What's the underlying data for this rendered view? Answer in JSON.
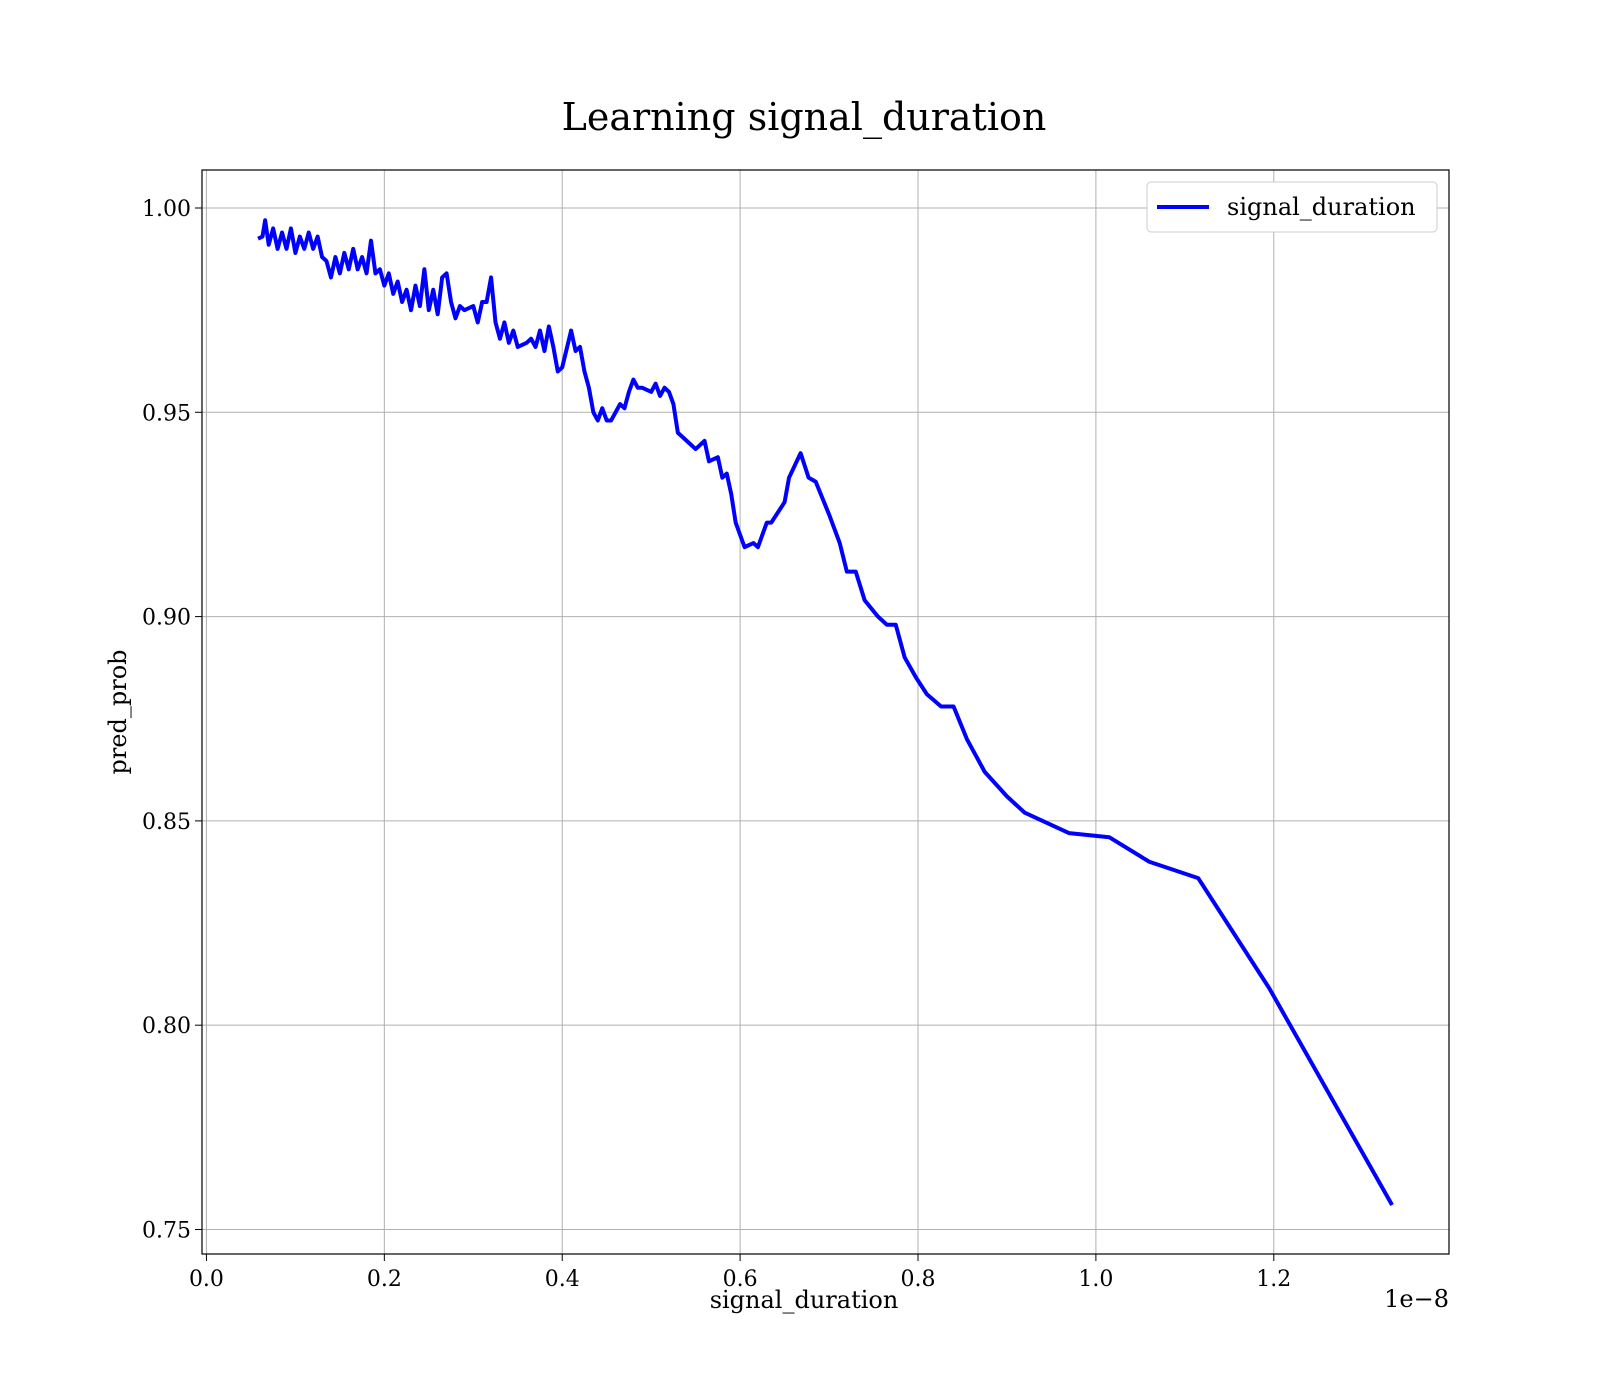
{
  "chart_data": {
    "type": "line",
    "title": "Learning signal_duration",
    "x_label": "signal_duration",
    "y_label": "pred_prob",
    "x_offset_label": "1e−8",
    "xlim": [
      -0.005,
      1.397
    ],
    "ylim": [
      0.744,
      1.0093
    ],
    "xticks": [
      {
        "value": 0,
        "label": "0.0"
      },
      0.2,
      0.4,
      0.6,
      0.8,
      {
        "value": 1,
        "label": "1.0"
      },
      1.2
    ],
    "yticks": [
      0.75,
      {
        "value": 0.8,
        "label": "0.80"
      },
      0.85,
      {
        "value": 0.9,
        "label": "0.90"
      },
      0.95,
      {
        "value": 1,
        "label": "1.00"
      }
    ],
    "grid": true,
    "legend": "upper right",
    "x": [
      0.058,
      0.063,
      0.066,
      0.07,
      0.075,
      0.08,
      0.085,
      0.09,
      0.095,
      0.1,
      0.105,
      0.11,
      0.115,
      0.12,
      0.125,
      0.13,
      0.135,
      0.14,
      0.145,
      0.15,
      0.155,
      0.16,
      0.165,
      0.17,
      0.175,
      0.18,
      0.185,
      0.19,
      0.195,
      0.2,
      0.205,
      0.21,
      0.215,
      0.22,
      0.225,
      0.23,
      0.235,
      0.24,
      0.245,
      0.25,
      0.255,
      0.26,
      0.265,
      0.27,
      0.275,
      0.28,
      0.285,
      0.29,
      0.3,
      0.305,
      0.31,
      0.315,
      0.32,
      0.325,
      0.33,
      0.335,
      0.34,
      0.345,
      0.35,
      0.36,
      0.365,
      0.37,
      0.375,
      0.38,
      0.385,
      0.39,
      0.395,
      0.4,
      0.41,
      0.415,
      0.42,
      0.425,
      0.43,
      0.435,
      0.44,
      0.445,
      0.45,
      0.455,
      0.46,
      0.465,
      0.47,
      0.475,
      0.48,
      0.485,
      0.49,
      0.5,
      0.505,
      0.51,
      0.515,
      0.52,
      0.525,
      0.53,
      0.54,
      0.55,
      0.56,
      0.565,
      0.575,
      0.58,
      0.585,
      0.59,
      0.595,
      0.605,
      0.615,
      0.62,
      0.63,
      0.635,
      0.65,
      0.655,
      0.668,
      0.677,
      0.685,
      0.7,
      0.712,
      0.72,
      0.73,
      0.74,
      0.755,
      0.765,
      0.775,
      0.785,
      0.798,
      0.81,
      0.826,
      0.84,
      0.855,
      0.875,
      0.9,
      0.92,
      0.97,
      1.015,
      1.06,
      1.115,
      1.195,
      1.333
    ],
    "series": [
      {
        "name": "signal_duration",
        "color": "#0000ff",
        "values": [
          0.9925,
          0.993,
          0.997,
          0.991,
          0.995,
          0.99,
          0.994,
          0.99,
          0.995,
          0.989,
          0.993,
          0.99,
          0.994,
          0.99,
          0.993,
          0.988,
          0.987,
          0.983,
          0.988,
          0.984,
          0.989,
          0.985,
          0.99,
          0.985,
          0.988,
          0.984,
          0.992,
          0.984,
          0.985,
          0.981,
          0.984,
          0.979,
          0.982,
          0.977,
          0.98,
          0.975,
          0.981,
          0.976,
          0.985,
          0.975,
          0.98,
          0.974,
          0.983,
          0.984,
          0.977,
          0.973,
          0.976,
          0.975,
          0.976,
          0.972,
          0.977,
          0.977,
          0.983,
          0.972,
          0.968,
          0.972,
          0.967,
          0.97,
          0.966,
          0.967,
          0.968,
          0.966,
          0.97,
          0.965,
          0.971,
          0.966,
          0.96,
          0.961,
          0.97,
          0.965,
          0.966,
          0.96,
          0.956,
          0.95,
          0.948,
          0.951,
          0.948,
          0.948,
          0.95,
          0.952,
          0.951,
          0.955,
          0.958,
          0.956,
          0.956,
          0.955,
          0.957,
          0.954,
          0.956,
          0.955,
          0.952,
          0.945,
          0.943,
          0.941,
          0.943,
          0.938,
          0.939,
          0.934,
          0.935,
          0.93,
          0.923,
          0.917,
          0.918,
          0.917,
          0.923,
          0.923,
          0.928,
          0.934,
          0.94,
          0.934,
          0.933,
          0.925,
          0.918,
          0.911,
          0.911,
          0.904,
          0.9,
          0.898,
          0.898,
          0.89,
          0.885,
          0.881,
          0.878,
          0.878,
          0.87,
          0.862,
          0.856,
          0.852,
          0.847,
          0.846,
          0.84,
          0.836,
          0.809,
          0.756
        ]
      }
    ]
  }
}
